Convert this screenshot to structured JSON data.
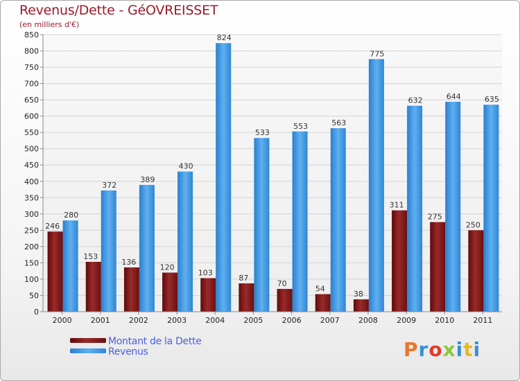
{
  "header": {
    "title": "Revenus/Dette - GéOVREISSET",
    "subtitle": "(en milliers d'€)"
  },
  "logo": {
    "text": "Proxiti",
    "colors": [
      "#e8772a",
      "#3a8fd8",
      "#e23a2a",
      "#8cc63f",
      "#3a8fd8",
      "#e8b820",
      "#3a8fd8"
    ]
  },
  "colors": {
    "dette": "#8b1a1a",
    "revenus": "#3a9ae8",
    "title": "#9c1a2a",
    "legend_text": "#4a5fe0"
  },
  "chart_data": {
    "type": "bar",
    "title": "Revenus/Dette - GéOVREISSET",
    "subtitle": "(en milliers d'€)",
    "categories": [
      "2000",
      "2001",
      "2002",
      "2003",
      "2004",
      "2005",
      "2006",
      "2007",
      "2008",
      "2009",
      "2010",
      "2011"
    ],
    "series": [
      {
        "name": "Montant de la Dette",
        "values": [
          246,
          153,
          136,
          120,
          103,
          87,
          70,
          54,
          38,
          311,
          275,
          250
        ]
      },
      {
        "name": "Revenus",
        "values": [
          280,
          372,
          389,
          430,
          824,
          533,
          553,
          563,
          775,
          632,
          644,
          635
        ]
      }
    ],
    "ylim": [
      0,
      850
    ],
    "yticks": [
      0,
      50,
      100,
      150,
      200,
      250,
      300,
      350,
      400,
      450,
      500,
      550,
      600,
      650,
      700,
      750,
      800,
      850
    ],
    "grid": true,
    "legend": "bottom-left"
  }
}
